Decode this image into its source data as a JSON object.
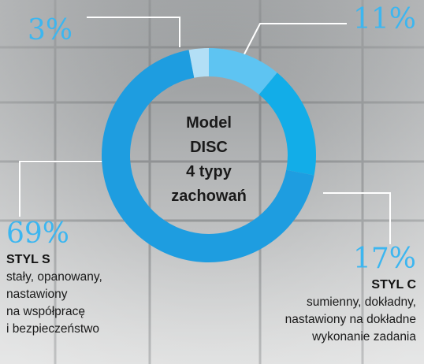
{
  "chart_data": {
    "type": "donut",
    "center_text": [
      "Model",
      "DISC",
      "4 typy",
      "zachowań"
    ],
    "categories": [
      null,
      null,
      "STYL C",
      "STYL S"
    ],
    "values": [
      3,
      11,
      17,
      69
    ],
    "value_labels": [
      "3%",
      "11%",
      "17%",
      "69%"
    ],
    "colors": [
      "#b3dff6",
      "#5ec4f2",
      "#12ade8",
      "#1e9de0"
    ],
    "descriptions": [
      null,
      null,
      [
        "sumienny, dokładny,",
        "nastawiony na dokładne",
        "wykonanie zadania"
      ],
      [
        "stały, opanowany,",
        "nastawiony",
        "na współpracę",
        "i bezpieczeństwo"
      ]
    ],
    "label_color": "#3cb6f0"
  }
}
